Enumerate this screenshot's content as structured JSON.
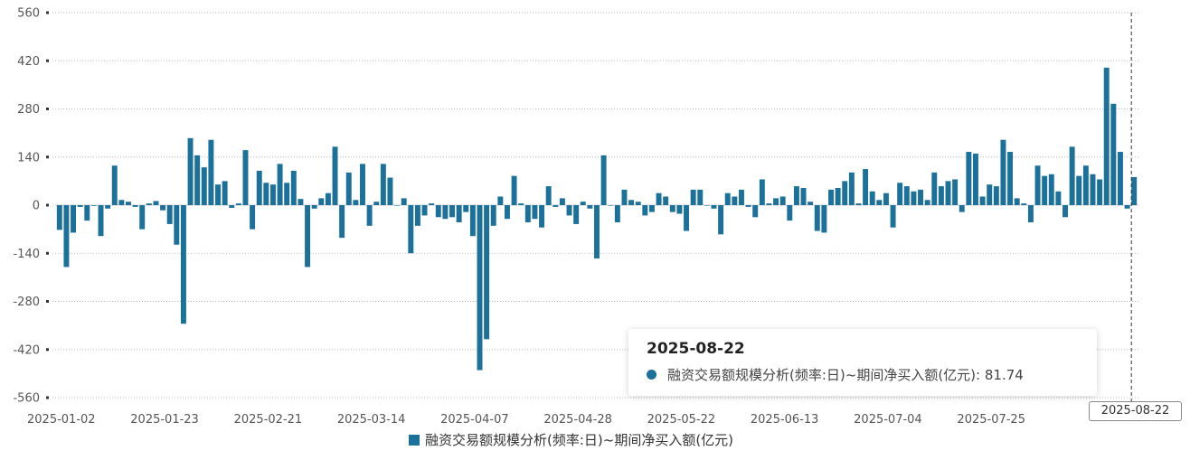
{
  "chart_data": {
    "type": "bar",
    "ylim": [
      -560,
      560
    ],
    "yticks": [
      560,
      420,
      280,
      140,
      0,
      -140,
      -280,
      -420,
      -560
    ],
    "xtick_labels": [
      "2025-01-02",
      "2025-01-23",
      "2025-02-21",
      "2025-03-14",
      "2025-04-07",
      "2025-04-28",
      "2025-05-22",
      "2025-06-13",
      "2025-07-04",
      "2025-07-25"
    ],
    "xtick_indices": [
      0,
      15,
      30,
      45,
      60,
      75,
      90,
      105,
      120,
      135
    ],
    "grid": true,
    "legend_position": "bottom-center",
    "series": [
      {
        "name": "融资交易额规模分析(频率:日)~期间净买入额(亿元)",
        "color": "#1b7199",
        "values": [
          -72,
          -180,
          -80,
          -5,
          -45,
          -2,
          -90,
          -10,
          115,
          15,
          10,
          -5,
          -70,
          5,
          12,
          -15,
          -55,
          -115,
          -345,
          195,
          145,
          110,
          190,
          60,
          70,
          -8,
          5,
          160,
          -70,
          100,
          65,
          60,
          120,
          65,
          100,
          18,
          -180,
          -10,
          20,
          35,
          170,
          -95,
          95,
          15,
          120,
          -60,
          10,
          120,
          80,
          0,
          20,
          -140,
          -60,
          -30,
          5,
          -35,
          -40,
          -35,
          -50,
          -20,
          -90,
          -480,
          -390,
          -60,
          25,
          -40,
          85,
          5,
          -50,
          -40,
          -65,
          55,
          -5,
          20,
          -30,
          -55,
          10,
          -10,
          -155,
          145,
          0,
          -50,
          45,
          15,
          10,
          -30,
          -20,
          35,
          25,
          -20,
          -25,
          -75,
          45,
          45,
          0,
          -10,
          -85,
          35,
          25,
          45,
          -5,
          -35,
          75,
          5,
          20,
          25,
          -45,
          55,
          50,
          10,
          -75,
          -80,
          45,
          50,
          70,
          95,
          5,
          105,
          40,
          15,
          35,
          -65,
          65,
          55,
          40,
          45,
          15,
          95,
          55,
          70,
          75,
          -20,
          155,
          150,
          25,
          60,
          55,
          190,
          155,
          20,
          5,
          -50,
          115,
          85,
          90,
          40,
          -35,
          170,
          85,
          115,
          90,
          75,
          400,
          295,
          155,
          -10,
          81.74
        ]
      }
    ],
    "selected": {
      "date": "2025-08-22",
      "value": "81.74"
    }
  },
  "tooltip": {
    "date": "2025-08-22",
    "label": "融资交易额规模分析(频率:日)~期间净买入额(亿元): 81.74"
  },
  "axis_pointer_label": "2025-08-22",
  "legend": {
    "label": "融资交易额规模分析(频率:日)~期间净买入额(亿元)",
    "color": "#1b7199"
  }
}
